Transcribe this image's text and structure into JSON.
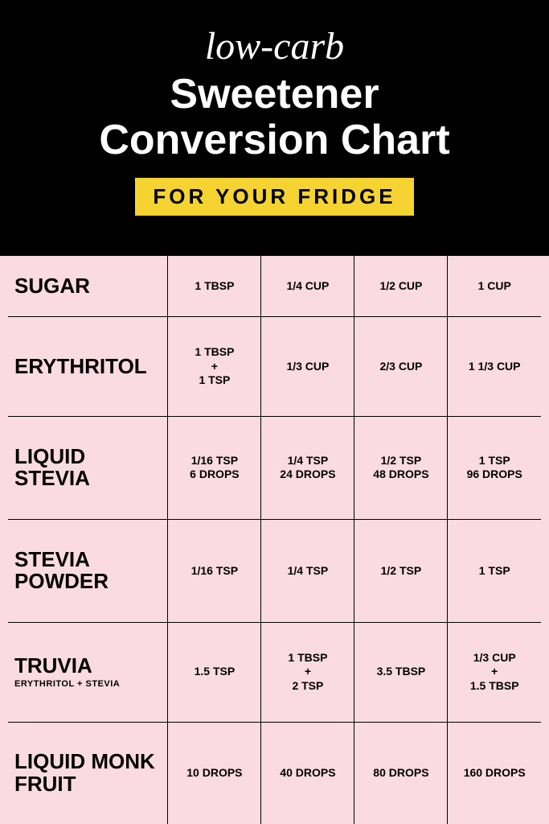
{
  "header": {
    "script_label": "low-carb",
    "title_line1": "Sweetener",
    "title_line2": "Conversion Chart",
    "subtitle": "FOR YOUR FRIDGE",
    "bg_color": "#000000",
    "title_color": "#ffffff",
    "subtitle_bg": "#f5d432",
    "subtitle_color": "#000000",
    "script_fontsize": 48,
    "title_fontsize": 52,
    "subtitle_fontsize": 26,
    "subtitle_letterspacing": 4
  },
  "table": {
    "bg_color": "#f9dbe1",
    "border_color": "#000000",
    "text_color": "#000000",
    "label_fontsize": 26,
    "sublabel_fontsize": 11,
    "cell_fontsize": 14,
    "col_widths_pct": [
      30,
      17.5,
      17.5,
      17.5,
      17.5
    ],
    "rows": [
      {
        "name": "SUGAR",
        "sub": "",
        "cells": [
          "1 TBSP",
          "1/4 CUP",
          "1/2 CUP",
          "1 CUP"
        ]
      },
      {
        "name": "ERYTHRITOL",
        "sub": "",
        "cells": [
          "1 TBSP\n+\n1 TSP",
          "1/3 CUP",
          "2/3 CUP",
          "1 1/3 CUP"
        ]
      },
      {
        "name": "LIQUID STEVIA",
        "sub": "",
        "cells": [
          "1/16 TSP\n6 DROPS",
          "1/4 TSP\n24 DROPS",
          "1/2 TSP\n48 DROPS",
          "1 TSP\n96 DROPS"
        ]
      },
      {
        "name": "STEVIA\nPOWDER",
        "sub": "",
        "cells": [
          "1/16 TSP",
          "1/4 TSP",
          "1/2 TSP",
          "1 TSP"
        ]
      },
      {
        "name": "TRUVIA",
        "sub": "ERYTHRITOL + STEVIA",
        "cells": [
          "1.5 TSP",
          "1 TBSP\n+\n2 TSP",
          "3.5 TBSP",
          "1/3 CUP\n+\n1.5 TBSP"
        ]
      },
      {
        "name": "LIQUID\nMONK FRUIT",
        "sub": "",
        "cells": [
          "10 DROPS",
          "40 DROPS",
          "80 DROPS",
          "160 DROPS"
        ]
      }
    ]
  }
}
